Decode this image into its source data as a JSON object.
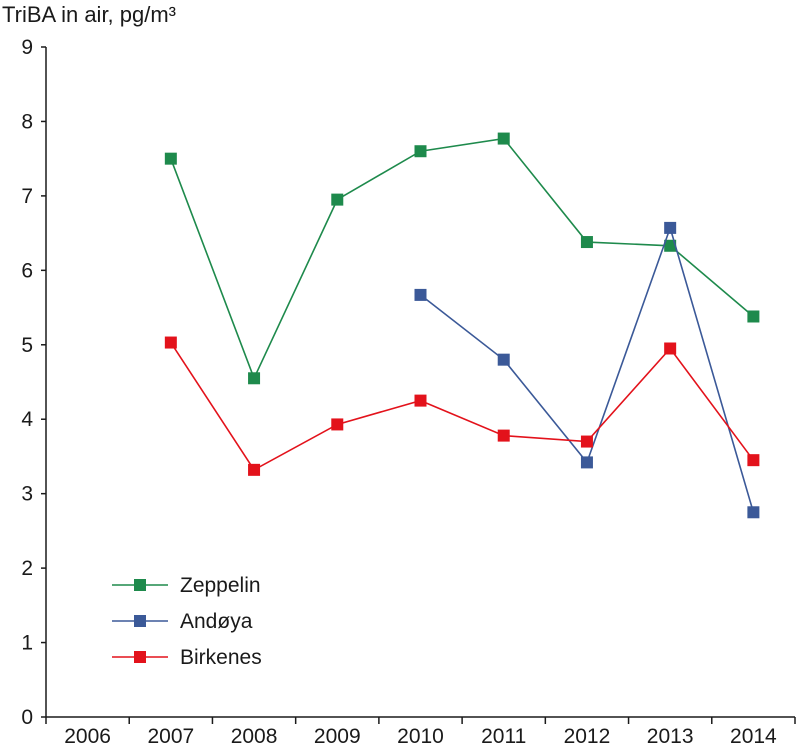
{
  "chart_data": {
    "type": "line",
    "title": "",
    "xlabel": "",
    "ylabel": "TriBA in air, pg/m³",
    "categories": [
      "2006",
      "2007",
      "2008",
      "2009",
      "2010",
      "2011",
      "2012",
      "2013",
      "2014"
    ],
    "ylim": [
      0,
      9
    ],
    "yticks": [
      "0",
      "1",
      "2",
      "3",
      "4",
      "5",
      "6",
      "7",
      "8",
      "9"
    ],
    "grid": false,
    "legend_position": "bottom-left",
    "series": [
      {
        "name": "Zeppelin",
        "color": "#1e8a4c",
        "values": [
          null,
          7.5,
          4.55,
          6.95,
          7.6,
          7.77,
          6.38,
          6.33,
          5.38
        ]
      },
      {
        "name": "Andøya",
        "color": "#3b5998",
        "values": [
          null,
          null,
          null,
          null,
          5.67,
          4.8,
          3.42,
          6.57,
          2.75
        ]
      },
      {
        "name": "Birkenes",
        "color": "#e3121b",
        "values": [
          null,
          5.03,
          3.32,
          3.93,
          4.25,
          3.78,
          3.7,
          4.95,
          3.45
        ]
      }
    ]
  }
}
